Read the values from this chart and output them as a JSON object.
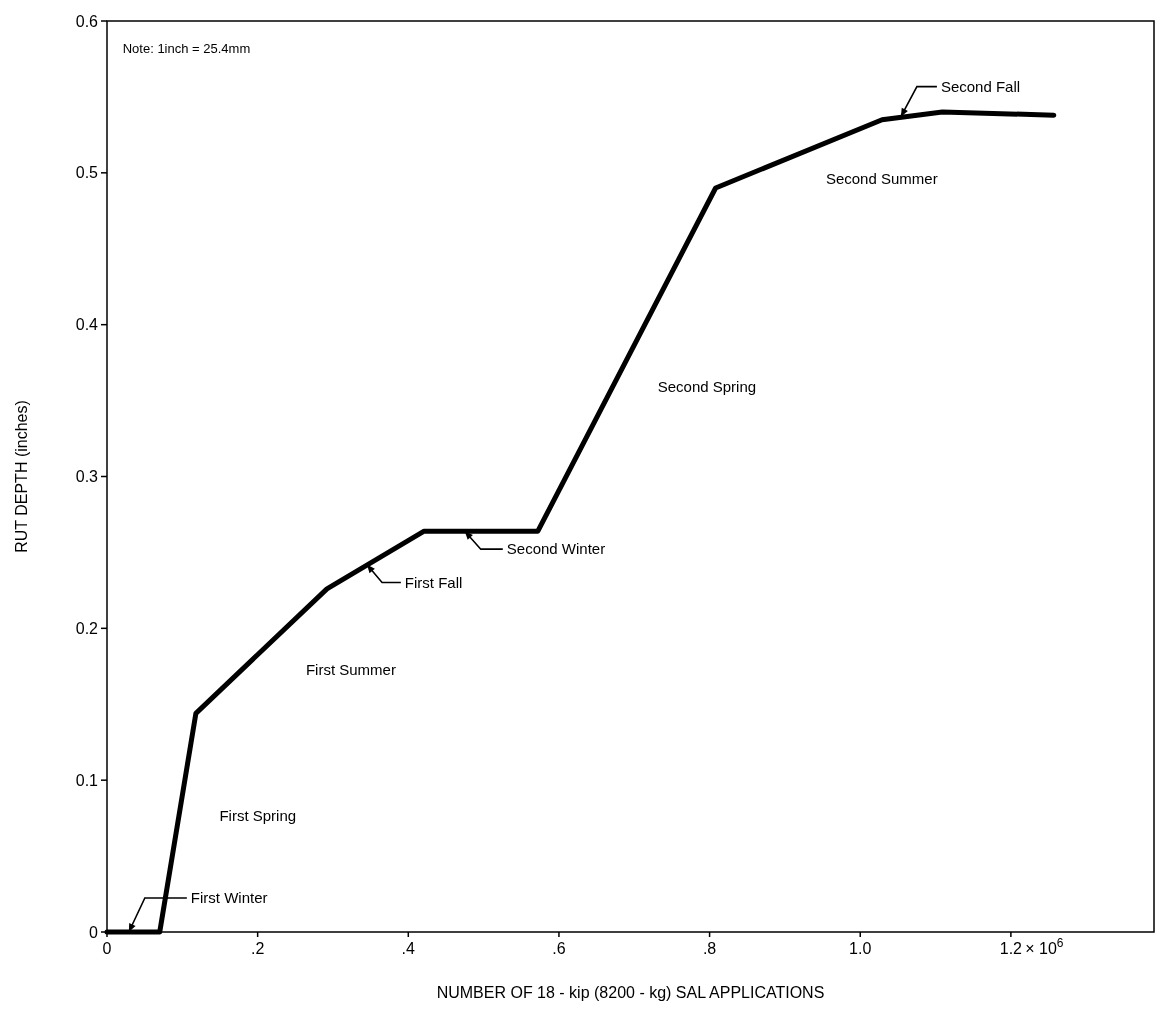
{
  "chart_data": {
    "type": "line",
    "xlabel": "NUMBER OF 18 - kip (8200 - kg) SAL APPLICATIONS",
    "ylabel": "RUT DEPTH (inches)",
    "x": [
      0,
      0.07,
      0.118,
      0.292,
      0.421,
      0.572,
      0.808,
      1.029,
      1.109,
      1.257
    ],
    "series": [
      {
        "color": "#000000",
        "values": [
          0,
          0,
          0.144,
          0.226,
          0.264,
          0.264,
          0.49,
          0.535,
          0.54,
          0.538
        ]
      }
    ],
    "xlim": [
      0,
      1.39
    ],
    "ylim": [
      0,
      0.6
    ],
    "xticks": [
      0,
      {
        "value": 0.2,
        "label": ".2"
      },
      {
        "value": 0.4,
        "label": ".4"
      },
      {
        "value": 0.6,
        "label": ".6"
      },
      {
        "value": 0.8,
        "label": ".8"
      },
      {
        "value": 1,
        "label": "1.0"
      },
      {
        "value": 1.2,
        "label": "1.2"
      }
    ],
    "yticks": [
      0,
      0.1,
      0.2,
      0.3,
      0.4,
      0.5,
      0.6
    ],
    "grid": false,
    "marker": "none",
    "line_style": "solid",
    "annotations": [
      "Note: 1inch = 25.4mm",
      {
        "text": "First Winter",
        "x": 0.029,
        "y": 0
      },
      "First Spring",
      "First Summer",
      {
        "text": "First Fall",
        "x": 0.345,
        "y": 0.242
      },
      {
        "text": "Second Winter",
        "x": 0.475,
        "y": 0.264
      },
      "Second Spring",
      "Second Summer",
      {
        "text": "Second Fall",
        "x": 1.054,
        "y": 0.537
      },
      "× 10$^{6}$"
    ]
  }
}
